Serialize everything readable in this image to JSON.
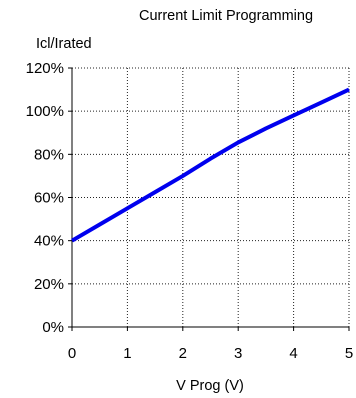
{
  "chart_data": {
    "type": "line",
    "title": "Current Limit Programming",
    "ylabel": "Icl/Irated",
    "xlabel": "V Prog (V)",
    "xlim": [
      0,
      5
    ],
    "ylim": [
      0,
      120
    ],
    "x_ticks": [
      0,
      1,
      2,
      3,
      4,
      5
    ],
    "x_tick_labels": [
      "0",
      "1",
      "2",
      "3",
      "4",
      "5"
    ],
    "y_ticks": [
      0,
      20,
      40,
      60,
      80,
      100,
      120
    ],
    "y_tick_labels": [
      "0%",
      "20%",
      "40%",
      "60%",
      "80%",
      "100%",
      "120%"
    ],
    "grid": true,
    "grid_style": "dotted",
    "series": [
      {
        "color": "#0000ee",
        "x": [
          0,
          0.5,
          1,
          1.5,
          2,
          2.5,
          3,
          3.5,
          4,
          4.5,
          5
        ],
        "y": [
          40,
          47.5,
          55,
          62.5,
          70,
          78,
          85.5,
          92,
          98,
          104,
          110
        ]
      }
    ]
  }
}
